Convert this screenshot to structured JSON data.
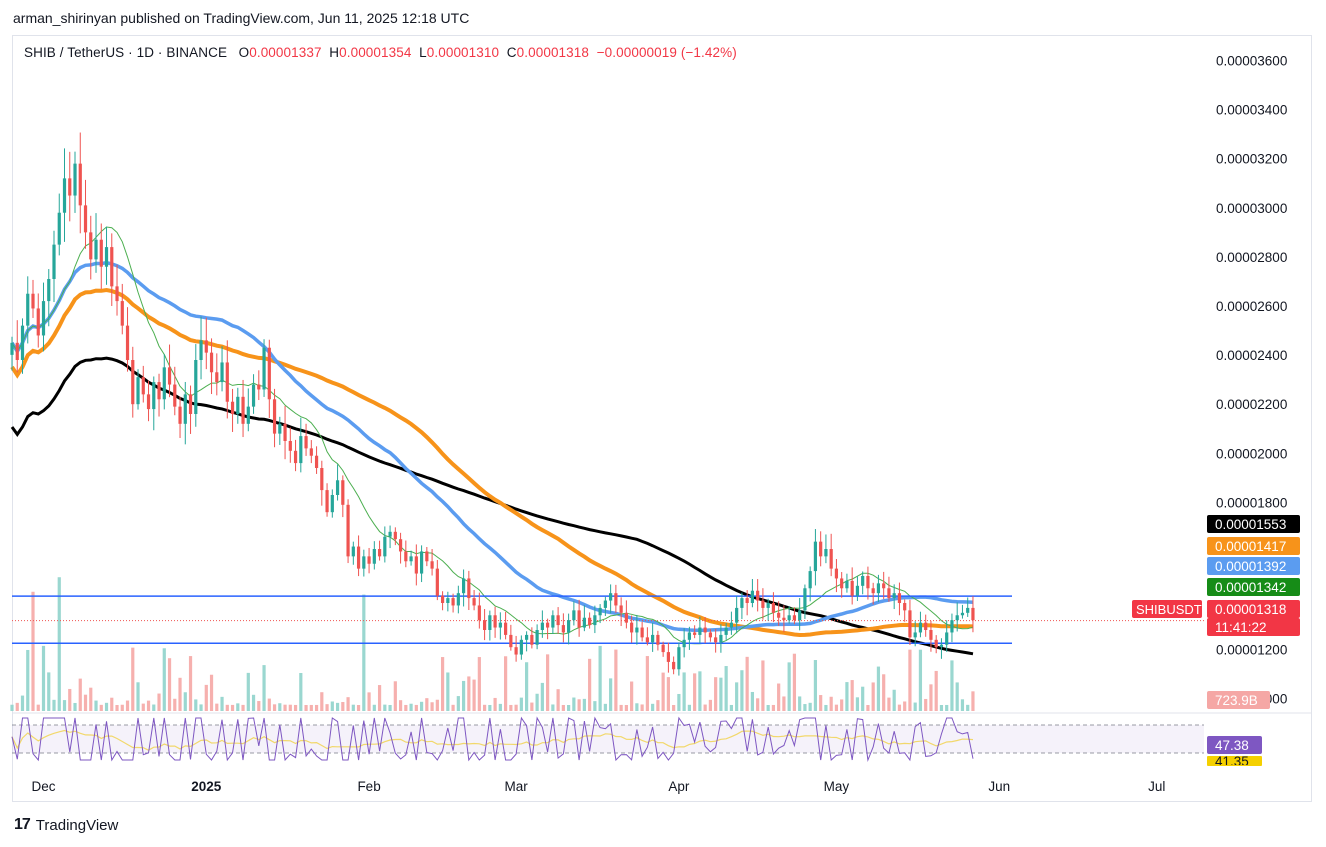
{
  "header": {
    "caption": "arman_shirinyan published on TradingView.com, Jun 11, 2025 12:18 UTC"
  },
  "legend": {
    "symbol": "SHIB / TetherUS · 1D · BINANCE",
    "o_label": "O",
    "o_value": "0.00001337",
    "h_label": "H",
    "h_value": "0.00001354",
    "l_label": "L",
    "l_value": "0.00001310",
    "c_label": "C",
    "c_value": "0.00001318",
    "change": "−0.00000019 (−1.42%)"
  },
  "footer": {
    "brand": "TradingView",
    "logo_text": "17"
  },
  "colors": {
    "up": "#26a69a",
    "down": "#ef5350",
    "ma_green": "#4caf50",
    "ma_blue": "#5b9cf0",
    "ma_orange": "#f7931a",
    "ma_black": "#000000",
    "level": "#2962ff",
    "rsi": "#7e57c2",
    "rsi_ma": "#f2d86b"
  },
  "chart_data": {
    "type": "candlestick",
    "symbol": "SHIBUSDT",
    "timeframe": "1D",
    "exchange": "BINANCE",
    "y_axis": {
      "ylim": [
        9.5e-06,
        3.7e-05
      ],
      "ticks": [
        "0.00001000",
        "0.00001200",
        "0.00001800",
        "0.00002000",
        "0.00002200",
        "0.00002400",
        "0.00002600",
        "0.00002800",
        "0.00003000",
        "0.00003200",
        "0.00003400",
        "0.00003600"
      ]
    },
    "x_axis": {
      "start": "2024-11-25",
      "end": "2025-07-10",
      "ticks": [
        {
          "label": "Dec",
          "date": "2024-12-01",
          "bold": false
        },
        {
          "label": "2025",
          "date": "2025-01-01",
          "bold": true
        },
        {
          "label": "Feb",
          "date": "2025-02-01",
          "bold": false
        },
        {
          "label": "Mar",
          "date": "2025-03-01",
          "bold": false
        },
        {
          "label": "Apr",
          "date": "2025-04-01",
          "bold": false
        },
        {
          "label": "May",
          "date": "2025-05-01",
          "bold": false
        },
        {
          "label": "Jun",
          "date": "2025-06-01",
          "bold": false
        },
        {
          "label": "Jul",
          "date": "2025-07-01",
          "bold": false
        }
      ]
    },
    "closes_start": "2024-11-25",
    "closes": [
      2.45e-05,
      2.38e-05,
      2.52e-05,
      2.65e-05,
      2.59e-05,
      2.48e-05,
      2.62e-05,
      2.71e-05,
      2.85e-05,
      2.98e-05,
      3.12e-05,
      3.05e-05,
      3.18e-05,
      3.01e-05,
      2.9e-05,
      2.79e-05,
      2.87e-05,
      2.76e-05,
      2.84e-05,
      2.68e-05,
      2.62e-05,
      2.52e-05,
      2.38e-05,
      2.2e-05,
      2.31e-05,
      2.24e-05,
      2.18e-05,
      2.29e-05,
      2.22e-05,
      2.35e-05,
      2.28e-05,
      2.19e-05,
      2.12e-05,
      2.24e-05,
      2.16e-05,
      2.38e-05,
      2.46e-05,
      2.41e-05,
      2.33e-05,
      2.29e-05,
      2.37e-05,
      2.21e-05,
      2.16e-05,
      2.23e-05,
      2.12e-05,
      2.19e-05,
      2.28e-05,
      2.26e-05,
      2.43e-05,
      2.22e-05,
      2.08e-05,
      2.12e-05,
      2.05e-05,
      2.01e-05,
      1.96e-05,
      2.07e-05,
      2.02e-05,
      1.99e-05,
      1.94e-05,
      1.85e-05,
      1.76e-05,
      1.83e-05,
      1.89e-05,
      1.79e-05,
      1.58e-05,
      1.62e-05,
      1.53e-05,
      1.58e-05,
      1.55e-05,
      1.61e-05,
      1.58e-05,
      1.66e-05,
      1.68e-05,
      1.65e-05,
      1.6e-05,
      1.56e-05,
      1.58e-05,
      1.51e-05,
      1.6e-05,
      1.56e-05,
      1.53e-05,
      1.42e-05,
      1.39e-05,
      1.41e-05,
      1.38e-05,
      1.43e-05,
      1.49e-05,
      1.41e-05,
      1.38e-05,
      1.32e-05,
      1.28e-05,
      1.34e-05,
      1.29e-05,
      1.31e-05,
      1.26e-05,
      1.21e-05,
      1.18e-05,
      1.24e-05,
      1.26e-05,
      1.22e-05,
      1.28e-05,
      1.31e-05,
      1.29e-05,
      1.34e-05,
      1.3e-05,
      1.27e-05,
      1.32e-05,
      1.36e-05,
      1.29e-05,
      1.33e-05,
      1.3e-05,
      1.34e-05,
      1.37e-05,
      1.4e-05,
      1.43e-05,
      1.38e-05,
      1.35e-05,
      1.31e-05,
      1.27e-05,
      1.29e-05,
      1.25e-05,
      1.23e-05,
      1.26e-05,
      1.22e-05,
      1.19e-05,
      1.15e-05,
      1.12e-05,
      1.21e-05,
      1.24e-05,
      1.27e-05,
      1.26e-05,
      1.29e-05,
      1.27e-05,
      1.25e-05,
      1.23e-05,
      1.26e-05,
      1.29e-05,
      1.31e-05,
      1.37e-05,
      1.41e-05,
      1.39e-05,
      1.44e-05,
      1.4e-05,
      1.37e-05,
      1.39e-05,
      1.35e-05,
      1.33e-05,
      1.32e-05,
      1.34e-05,
      1.32e-05,
      1.36e-05,
      1.45e-05,
      1.52e-05,
      1.64e-05,
      1.58e-05,
      1.61e-05,
      1.53e-05,
      1.49e-05,
      1.45e-05,
      1.48e-05,
      1.42e-05,
      1.46e-05,
      1.5e-05,
      1.45e-05,
      1.43e-05,
      1.47e-05,
      1.45e-05,
      1.41e-05,
      1.43e-05,
      1.39e-05,
      1.36e-05,
      1.25e-05,
      1.27e-05,
      1.31e-05,
      1.28e-05,
      1.24e-05,
      1.21e-05,
      1.22e-05,
      1.27e-05,
      1.32e-05,
      1.34e-05,
      1.35e-05,
      1.37e-05,
      1.32e-05
    ],
    "series": [
      {
        "name": "MA (green, thin)",
        "color": "#4caf50",
        "last": 1.342e-05
      },
      {
        "name": "MA (blue)",
        "color": "#5b9cf0",
        "last": 1.392e-05
      },
      {
        "name": "MA (orange)",
        "color": "#f7931a",
        "last": 1.417e-05
      },
      {
        "name": "MA (black)",
        "color": "#000000",
        "last": 1.553e-05
      }
    ],
    "horizontal_levels": [
      1.418e-05,
      1.226e-05
    ],
    "last_price": {
      "label": "SHIBUSDT",
      "value": "0.00001318",
      "countdown": "11:41:22",
      "y": 1.318e-05
    },
    "ma_value_tags": [
      "0.00001553",
      "0.00001417",
      "0.00001392",
      "0.00001342"
    ],
    "volume": {
      "last": "723.9B"
    },
    "rsi": {
      "value": "47.38",
      "ma_value": "41.35",
      "upper": 70,
      "lower": 30
    }
  }
}
